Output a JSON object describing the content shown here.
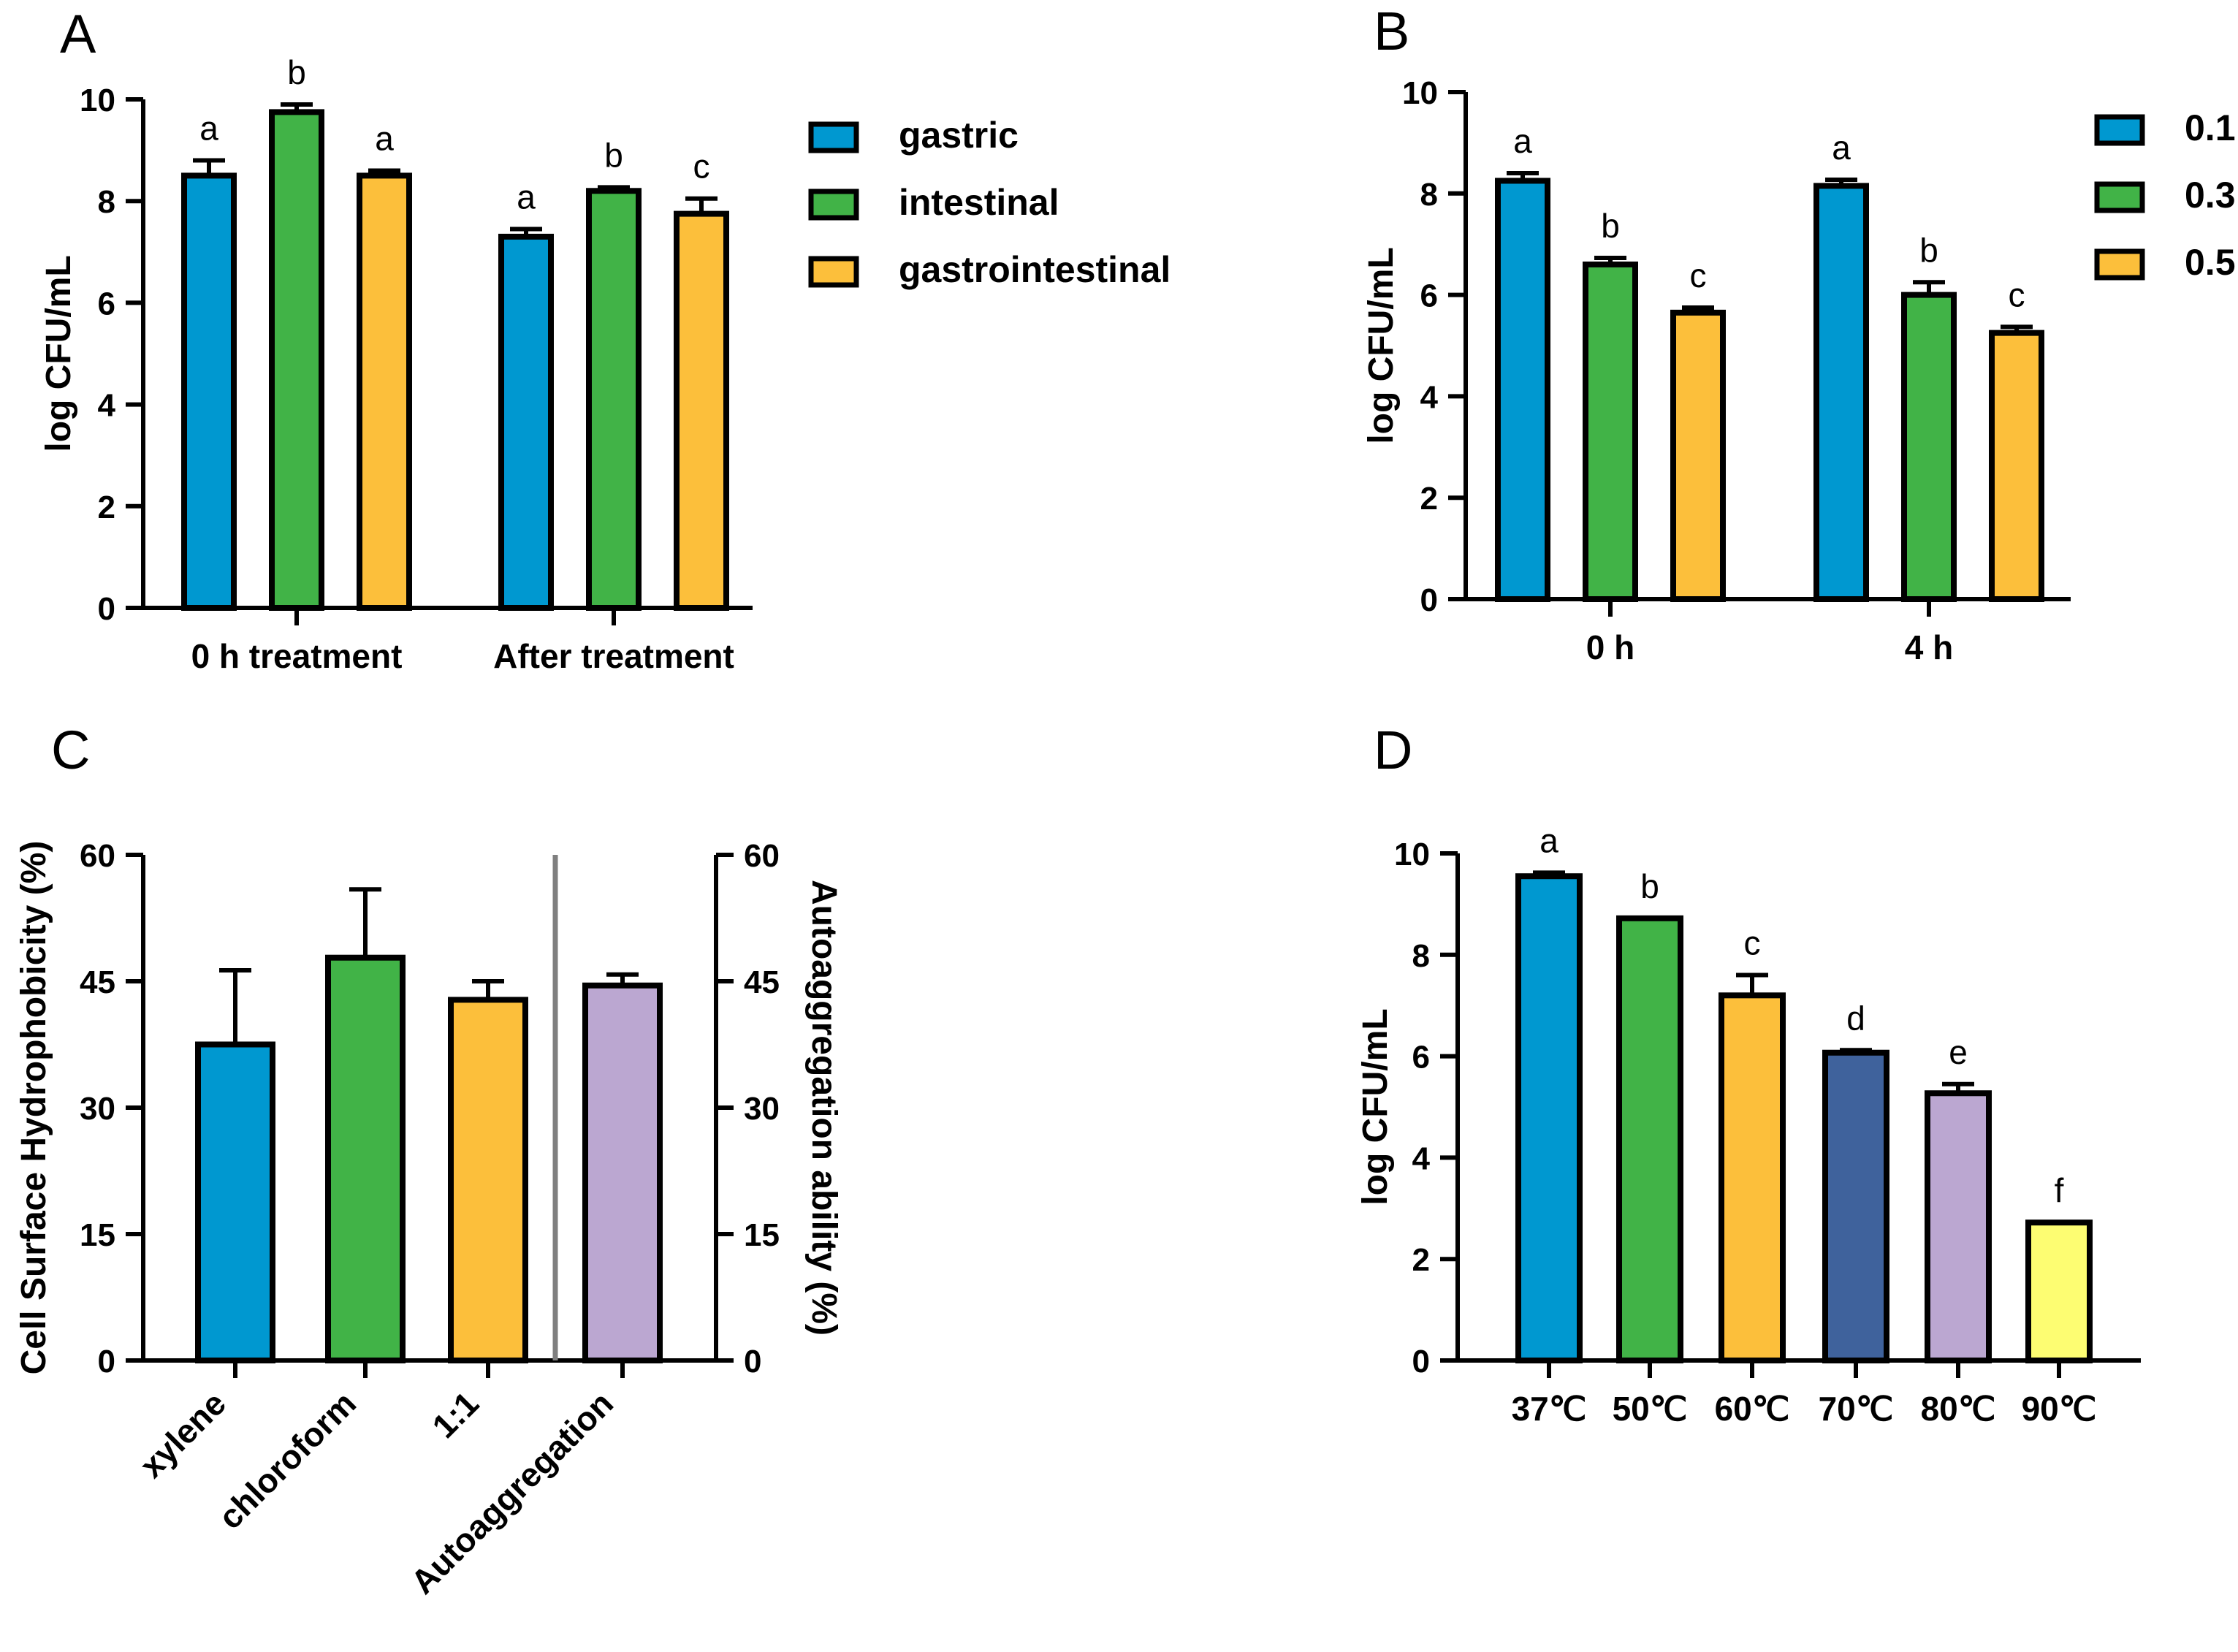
{
  "colors": {
    "blue": "#0098d0",
    "green": "#41b347",
    "orange": "#fcbf3b",
    "navy": "#3f629c",
    "lilac": "#bba7d1",
    "yellow": "#fdfd72",
    "divider": "#7f7f7f"
  },
  "chart_data": [
    {
      "panel": "A",
      "type": "bar",
      "ylabel": "log CFU/mL",
      "ylim": [
        0,
        10
      ],
      "yticks": [
        "0",
        "2",
        "4",
        "6",
        "8",
        "10"
      ],
      "categories": [
        "0 h treatment",
        "After treatment"
      ],
      "legend_position": "right",
      "series": [
        {
          "name": "gastric",
          "color": "blue",
          "values": [
            8.5,
            7.3
          ],
          "errors": [
            0.3,
            0.15
          ],
          "sig": [
            "a",
            "a"
          ]
        },
        {
          "name": "intestinal",
          "color": "green",
          "values": [
            9.75,
            8.2
          ],
          "errors": [
            0.15,
            0.07
          ],
          "sig": [
            "b",
            "b"
          ]
        },
        {
          "name": "gastrointestinal",
          "color": "orange",
          "values": [
            8.5,
            7.75
          ],
          "errors": [
            0.1,
            0.3
          ],
          "sig": [
            "a",
            "c"
          ]
        }
      ]
    },
    {
      "panel": "B",
      "type": "bar",
      "ylabel": "log CFU/mL",
      "ylim": [
        0,
        10
      ],
      "yticks": [
        "0",
        "2",
        "4",
        "6",
        "8",
        "10"
      ],
      "categories": [
        "0 h",
        "4 h"
      ],
      "legend_position": "right",
      "series": [
        {
          "name": "0.1",
          "color": "blue",
          "values": [
            8.25,
            8.15
          ],
          "errors": [
            0.15,
            0.12
          ],
          "sig": [
            "a",
            "a"
          ]
        },
        {
          "name": "0.3",
          "color": "green",
          "values": [
            6.6,
            6.0
          ],
          "errors": [
            0.13,
            0.25
          ],
          "sig": [
            "b",
            "b"
          ]
        },
        {
          "name": "0.5",
          "color": "orange",
          "values": [
            5.65,
            5.25
          ],
          "errors": [
            0.1,
            0.12
          ],
          "sig": [
            "c",
            "c"
          ]
        }
      ]
    },
    {
      "panel": "C",
      "type": "bar",
      "ylabel": "Cell Surface Hydrophobicity (%)",
      "y2label": "Autoaggregation ability (%)",
      "ylim": [
        0,
        60
      ],
      "yticks": [
        "0",
        "15",
        "30",
        "45",
        "60"
      ],
      "categories": [
        "xylene",
        "chloroform",
        "1:1",
        "Autoaggregation"
      ],
      "values": [
        37.5,
        47.8,
        42.8,
        44.5
      ],
      "errors": [
        8.8,
        8.1,
        2.2,
        1.3
      ],
      "bar_colors": [
        "blue",
        "green",
        "orange",
        "lilac"
      ]
    },
    {
      "panel": "D",
      "type": "bar",
      "ylabel": "log CFU/mL",
      "ylim": [
        0,
        10
      ],
      "yticks": [
        "0",
        "2",
        "4",
        "6",
        "8",
        "10"
      ],
      "categories": [
        "37℃",
        "50℃",
        "60℃",
        "70℃",
        "80℃",
        "90℃"
      ],
      "values": [
        9.55,
        8.72,
        7.2,
        6.07,
        5.27,
        2.72
      ],
      "errors": [
        0.07,
        0.0,
        0.4,
        0.05,
        0.18,
        0.0
      ],
      "sig": [
        "a",
        "b",
        "c",
        "d",
        "e",
        "f"
      ],
      "bar_colors": [
        "blue",
        "green",
        "orange",
        "navy",
        "lilac",
        "yellow"
      ]
    }
  ]
}
